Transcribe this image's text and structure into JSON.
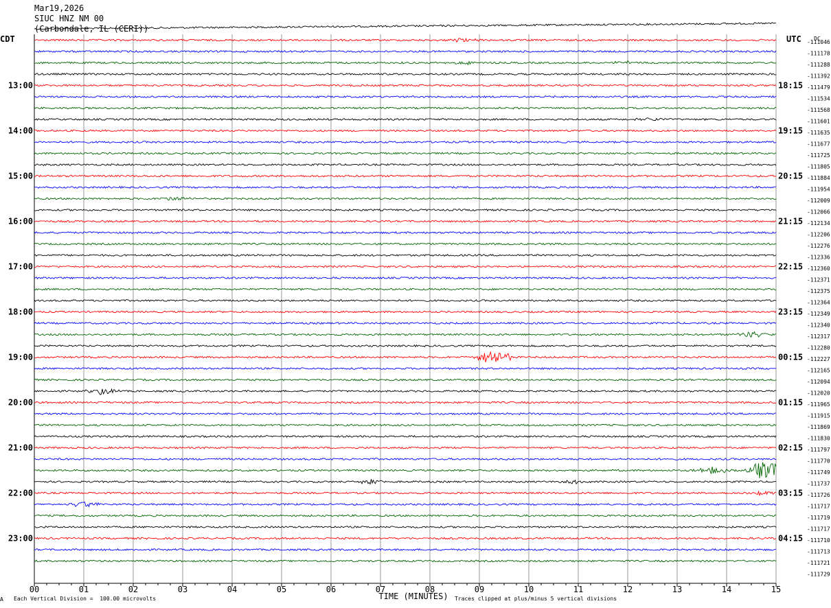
{
  "header": {
    "date": "Mar19,2026",
    "station": "SIUC HNZ NM 00",
    "location": "(Carbondale, IL (CERI))"
  },
  "left_tz": "CDT",
  "right_tz": "UTC",
  "dc_label": "DC",
  "footer": {
    "scale_note": "Each Vertical Division =  100.00 microvolts",
    "clip_note": "Traces clipped at plus/minus 5 vertical divisions",
    "corner_mark": "A"
  },
  "colors": {
    "black": "#000000",
    "red": "#ff0000",
    "blue": "#0000ff",
    "green": "#006400",
    "grid": "#808080"
  },
  "chart_data": {
    "type": "line",
    "subtype": "helicorder",
    "xlabel": "TIME (MINUTES)",
    "x_ticks": [
      "00",
      "01",
      "02",
      "03",
      "04",
      "05",
      "06",
      "07",
      "08",
      "09",
      "10",
      "11",
      "12",
      "13",
      "14",
      "15"
    ],
    "xlim": [
      0,
      15
    ],
    "trace_colors": [
      "black",
      "red",
      "blue",
      "green"
    ],
    "left_hour_labels": [
      "13:00",
      "14:00",
      "15:00",
      "16:00",
      "17:00",
      "18:00",
      "19:00",
      "20:00",
      "21:00",
      "22:00",
      "23:00"
    ],
    "right_hour_labels": [
      "18:15",
      "19:15",
      "20:15",
      "21:15",
      "22:15",
      "23:15",
      "00:15",
      "01:15",
      "02:15",
      "03:15",
      "04:15"
    ],
    "dc_offsets": [
      "-111046",
      "-111178",
      "-111288",
      "-111392",
      "-111479",
      "-111534",
      "-111568",
      "-111601",
      "-111635",
      "-111677",
      "-111725",
      "-111805",
      "-111884",
      "-111954",
      "-112009",
      "-112066",
      "-112134",
      "-112206",
      "-112276",
      "-112336",
      "-112360",
      "-112371",
      "-112375",
      "-112364",
      "-112349",
      "-112340",
      "-112317",
      "-112280",
      "-112227",
      "-112165",
      "-112094",
      "-112020",
      "-111965",
      "-111915",
      "-111869",
      "-111830",
      "-111797",
      "-111770",
      "-111749",
      "-111737",
      "-111726",
      "-111717",
      "-111719",
      "-111717",
      "-111710",
      "-111713",
      "-111721",
      "-111729"
    ],
    "events": [
      {
        "trace": 1,
        "minute": 8.7,
        "amplitude": 1.5
      },
      {
        "trace": 3,
        "minute": 8.7,
        "amplitude": 1.5
      },
      {
        "trace": 3,
        "minute": 12.0,
        "amplitude": 1.4
      },
      {
        "trace": 8,
        "minute": 12.5,
        "amplitude": 1.5
      },
      {
        "trace": 15,
        "minute": 2.9,
        "amplitude": 1.8
      },
      {
        "trace": 27,
        "minute": 14.5,
        "amplitude": 3.0
      },
      {
        "trace": 29,
        "minute": 9.3,
        "amplitude": 8.0
      },
      {
        "trace": 32,
        "minute": 1.4,
        "amplitude": 3.0
      },
      {
        "trace": 39,
        "minute": 14.8,
        "amplitude": 10.0
      },
      {
        "trace": 39,
        "minute": 13.7,
        "amplitude": 3.0
      },
      {
        "trace": 40,
        "minute": 6.8,
        "amplitude": 2.0
      },
      {
        "trace": 40,
        "minute": 11.0,
        "amplitude": 2.2
      },
      {
        "trace": 42,
        "minute": 1.0,
        "amplitude": 2.5
      },
      {
        "trace": 41,
        "minute": 14.7,
        "amplitude": 2.0
      }
    ]
  }
}
